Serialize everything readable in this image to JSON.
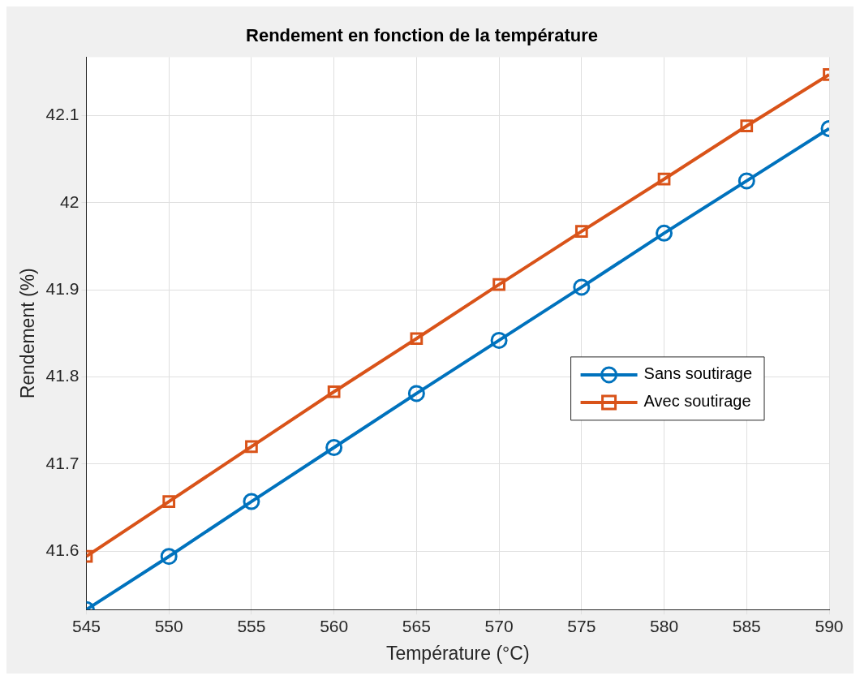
{
  "chart_data": {
    "type": "line",
    "title": "Rendement en fonction de la température",
    "xlabel": "Température (°C)",
    "ylabel": "Rendement (%)",
    "x": [
      545,
      550,
      555,
      560,
      565,
      570,
      575,
      580,
      585,
      590
    ],
    "xlim": [
      545,
      590
    ],
    "xticks": [
      545,
      550,
      555,
      560,
      565,
      570,
      575,
      580,
      585,
      590
    ],
    "ylim": [
      41.533,
      42.167
    ],
    "yticks": [
      41.6,
      41.7,
      41.8,
      41.9,
      42,
      42.1
    ],
    "grid": true,
    "legend": "right",
    "line_style": "solid",
    "series": [
      {
        "name": "Sans soutirage",
        "color": "#0072bd",
        "marker": "circle",
        "values": [
          41.533,
          41.594,
          41.657,
          41.719,
          41.781,
          41.842,
          41.903,
          41.965,
          42.025,
          42.085
        ]
      },
      {
        "name": "Avec soutirage",
        "color": "#d95319",
        "marker": "square",
        "values": [
          41.594,
          41.657,
          41.72,
          41.783,
          41.844,
          41.906,
          41.967,
          42.027,
          42.088,
          42.147
        ]
      }
    ]
  }
}
